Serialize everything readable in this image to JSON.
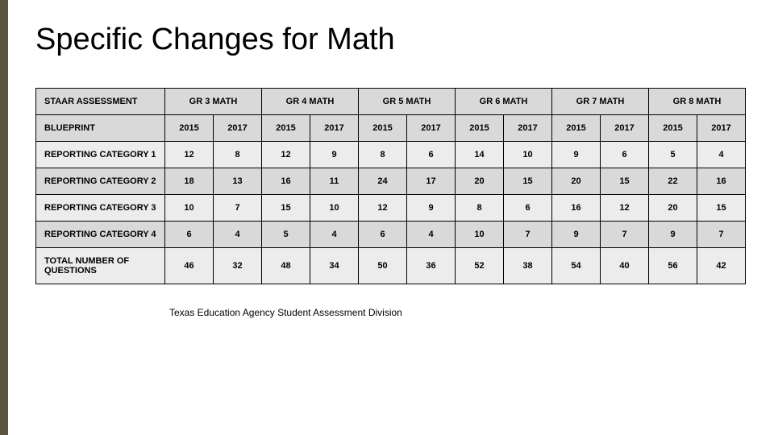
{
  "title": "Specific Changes for Math",
  "footer": "Texas Education Agency Student Assessment Division",
  "accent_color": "#5c5340",
  "table": {
    "type": "table",
    "header_bg": "#d9d9d9",
    "row_bg_alt": [
      "#ececec",
      "#d9d9d9"
    ],
    "border_color": "#000000",
    "font_size": 11,
    "corner_label": "STAAR ASSESSMENT",
    "grade_headers": [
      "GR 3 MATH",
      "GR 4 MATH",
      "GR 5 MATH",
      "GR 6 MATH",
      "GR 7 MATH",
      "GR 8 MATH"
    ],
    "year_pair": [
      "2015",
      "2017"
    ],
    "blueprint_label": "BLUEPRINT",
    "rows": [
      {
        "label": "REPORTING CATEGORY 1",
        "values": [
          12,
          8,
          12,
          9,
          8,
          6,
          14,
          10,
          9,
          6,
          5,
          4
        ]
      },
      {
        "label": "REPORTING CATEGORY 2",
        "values": [
          18,
          13,
          16,
          11,
          24,
          17,
          20,
          15,
          20,
          15,
          22,
          16
        ]
      },
      {
        "label": "REPORTING CATEGORY 3",
        "values": [
          10,
          7,
          15,
          10,
          12,
          9,
          8,
          6,
          16,
          12,
          20,
          15
        ]
      },
      {
        "label": "REPORTING CATEGORY 4",
        "values": [
          6,
          4,
          5,
          4,
          6,
          4,
          10,
          7,
          9,
          7,
          9,
          7
        ]
      },
      {
        "label": "TOTAL NUMBER OF QUESTIONS",
        "values": [
          46,
          32,
          48,
          34,
          50,
          36,
          52,
          38,
          54,
          40,
          56,
          42
        ]
      }
    ]
  }
}
